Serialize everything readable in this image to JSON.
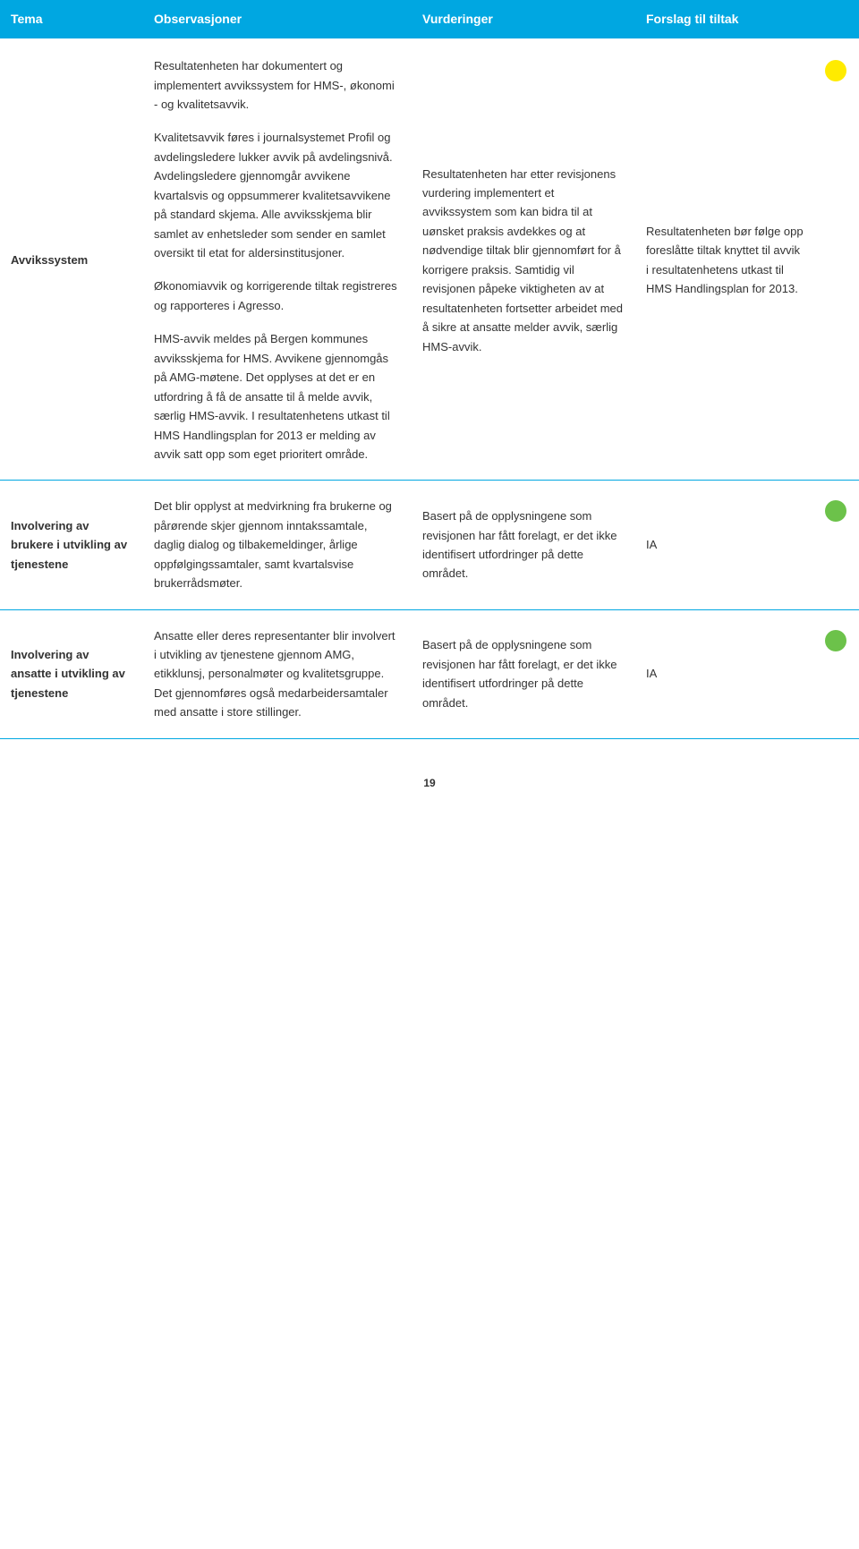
{
  "header": {
    "tema": "Tema",
    "obs": "Observasjoner",
    "vurd": "Vurderinger",
    "fors": "Forslag til tiltak",
    "bg_color": "#00a7e1",
    "text_color": "#ffffff"
  },
  "status_colors": {
    "yellow": "#ffeb00",
    "green": "#6cc24a"
  },
  "rows": [
    {
      "tema": "Avvikssystem",
      "obs_p1": "Resultatenheten har dokumentert og implementert avvikssystem for HMS-, økonomi - og kvalitetsavvik.",
      "obs_p2": "Kvalitetsavvik føres i journalsystemet Profil og avdelingsledere lukker avvik på avdelingsnivå. Avdelingsledere gjennomgår avvikene kvartalsvis og oppsummerer kvalitetsavvikene på standard skjema. Alle avviksskjema blir samlet av enhetsleder som sender en samlet oversikt til etat for aldersinstitusjoner.",
      "obs_p3": "Økonomiavvik og korrigerende tiltak registreres og rapporteres i Agresso.",
      "obs_p4": "HMS-avvik meldes på Bergen kommunes avviksskjema for HMS. Avvikene gjennomgås på AMG-møtene. Det opplyses at det er en utfordring å få de ansatte til å melde avvik, særlig HMS-avvik. I resultatenhetens utkast til HMS Handlingsplan for 2013 er melding av avvik satt opp som eget prioritert område.",
      "vurd": "Resultatenheten har etter revisjonens vurdering implementert et avvikssystem som kan bidra til at uønsket praksis avdekkes og at nødvendige tiltak blir gjennomført for å korrigere praksis. Samtidig vil revisjonen påpeke viktigheten av at resultatenheten fortsetter arbeidet med å sikre at ansatte melder avvik, særlig HMS-avvik.",
      "fors": "Resultatenheten bør følge opp foreslåtte tiltak knyttet til avvik i resultatenhetens utkast til HMS Handlingsplan for 2013.",
      "status_color": "#ffeb00"
    },
    {
      "tema": "Involvering av brukere i utvikling av tjenestene",
      "obs": "Det blir opplyst at medvirkning fra brukerne og pårørende skjer gjennom inntakssamtale, daglig dialog og tilbakemeldinger, årlige oppfølgingssamtaler, samt kvartalsvise brukerrådsmøter.",
      "vurd": "Basert på de opplysningene som revisjonen har fått forelagt, er det ikke identifisert utfordringer på dette området.",
      "fors": "IA",
      "status_color": "#6cc24a"
    },
    {
      "tema": "Involvering av ansatte i utvikling av tjenestene",
      "obs": "Ansatte eller deres representanter blir involvert i utvikling av tjenestene gjennom AMG, etikklunsj, personalmøter og kvalitetsgruppe. Det gjennomføres også medarbeidersamtaler med ansatte i store stillinger.",
      "vurd": "Basert på de opplysningene som revisjonen har fått forelagt, er det ikke identifisert utfordringer på dette området.",
      "fors": "IA",
      "status_color": "#6cc24a"
    }
  ],
  "page_number": "19"
}
